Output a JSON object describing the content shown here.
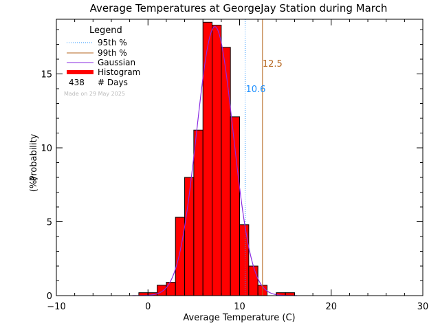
{
  "chart_data": {
    "type": "bar",
    "title": "Average Temperatures at GeorgeJay Station during March",
    "xlabel": "Average Temperature (C)",
    "ylabel": "Probability",
    "ylabel_unit": "(%)",
    "xlim": [
      -10,
      30
    ],
    "ylim": [
      0,
      18.7
    ],
    "xticks": [
      -10,
      0,
      10,
      20,
      30
    ],
    "yticks": [
      0,
      5,
      10,
      15
    ],
    "histogram": {
      "bin_width": 1.0,
      "bin_starts": [
        -1,
        0,
        1,
        2,
        3,
        4,
        5,
        6,
        7,
        8,
        9,
        10,
        11,
        12,
        13,
        14,
        15
      ],
      "values": [
        0.2,
        0.2,
        0.7,
        0.9,
        5.3,
        8.0,
        11.2,
        18.5,
        18.3,
        16.8,
        12.1,
        4.8,
        2.0,
        0.7,
        0.0,
        0.2,
        0.2
      ]
    },
    "gaussian": {
      "mean": 7.3,
      "sd": 2.0,
      "peak": 18.2
    },
    "percentile_95": {
      "label": "10.6",
      "value": 10.6
    },
    "percentile_99": {
      "label": "12.5",
      "value": 12.5
    },
    "legend": {
      "title": "Legend",
      "items": [
        "95th %",
        "99th %",
        "Gaussian",
        "Histogram"
      ],
      "count_value": "438",
      "count_label": "# Days",
      "made_on": "Made on 29 May 2025"
    },
    "colors": {
      "bars": "#ff0000",
      "gaussian": "#8a2be2",
      "p95": "#1e90ff",
      "p99": "#b5651d",
      "axes": "#000000"
    }
  }
}
